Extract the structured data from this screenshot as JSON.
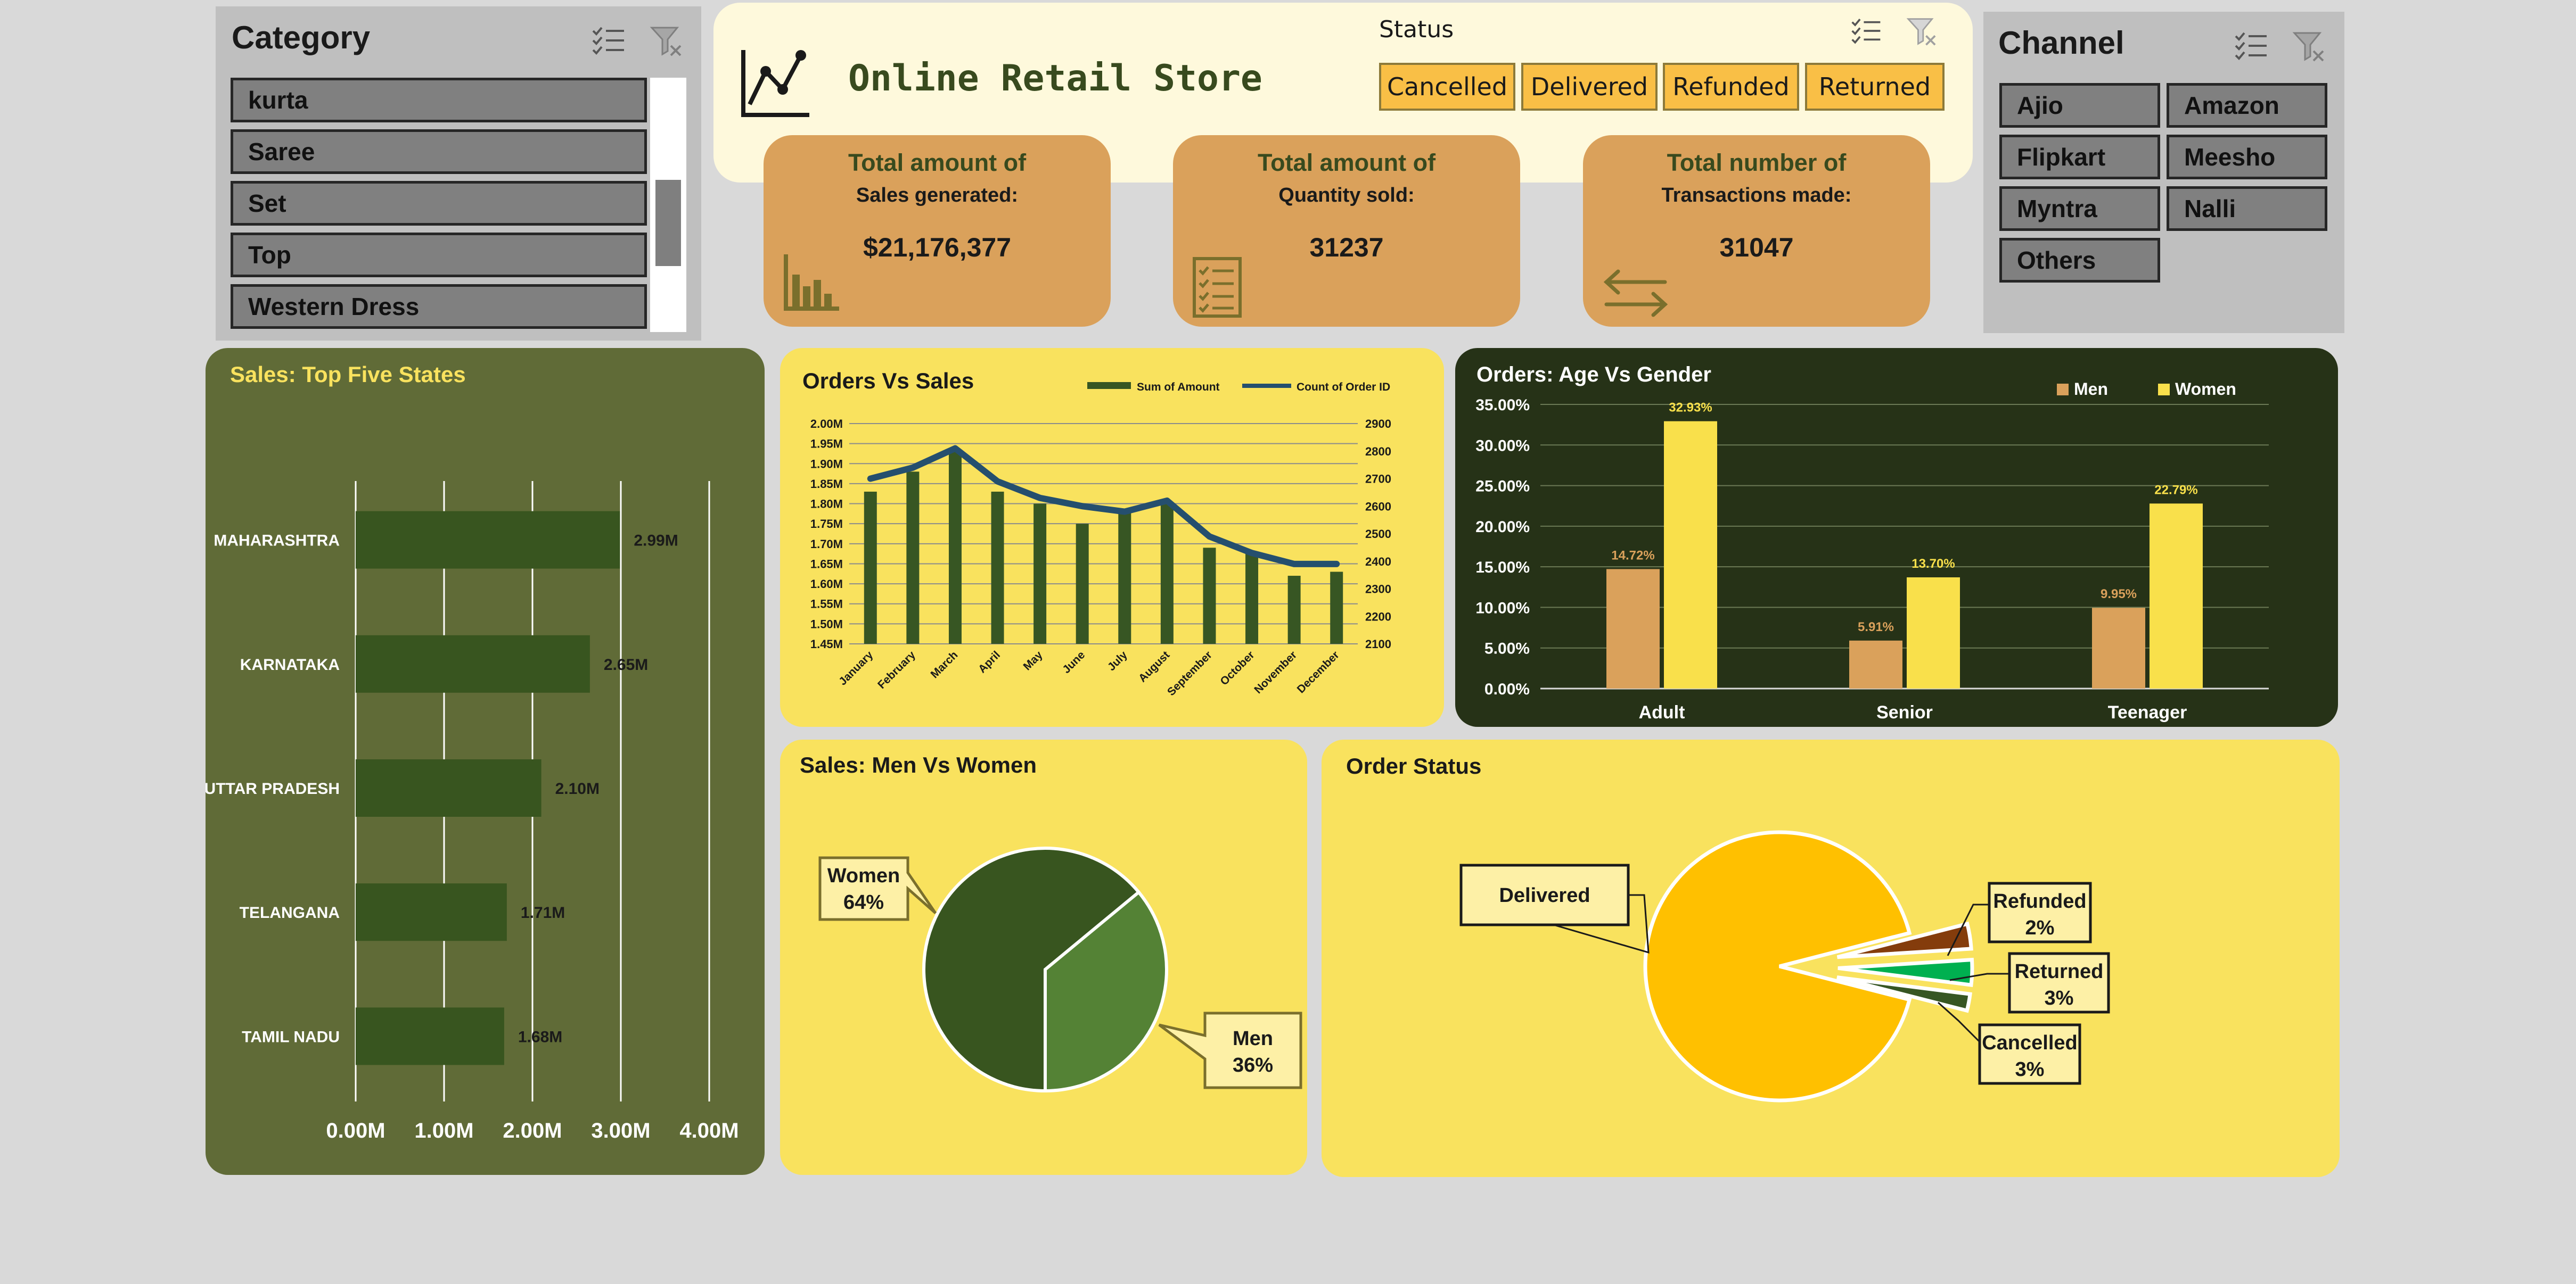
{
  "colors": {
    "background": "#d9d9d9",
    "slicer_bg": "#bfbfbf",
    "slicer_button": "#808080",
    "status_button": "#f9bf46",
    "header_bg": "#fef9dc",
    "kpi_bg": "#daa15b",
    "olive_panel": "#606b37",
    "dark_panel": "#263217",
    "yellow_panel": "#f9e25e",
    "dark_green": "#38551f",
    "mid_green": "#548235",
    "navy_line": "#254f6e",
    "tan": "#daa15b",
    "women_yellow": "#f9e04b",
    "delivered": "#ffc000",
    "returned": "#00b050",
    "cancelled": "#843c0c",
    "refunded": "#375623"
  },
  "category_slicer": {
    "title": "Category",
    "items": [
      "kurta",
      "Saree",
      "Set",
      "Top",
      "Western Dress"
    ],
    "icons": [
      "multi-select-icon",
      "clear-filter-icon"
    ]
  },
  "header": {
    "title": "Online Retail Store",
    "icon": "line-chart-icon"
  },
  "status_slicer": {
    "title": "Status",
    "items": [
      "Cancelled",
      "Delivered",
      "Refunded",
      "Returned"
    ],
    "icons": [
      "multi-select-icon",
      "clear-filter-icon"
    ]
  },
  "channel_slicer": {
    "title": "Channel",
    "items": [
      "Ajio",
      "Amazon",
      "Flipkart",
      "Meesho",
      "Myntra",
      "Nalli",
      "Others"
    ],
    "icons": [
      "multi-select-icon",
      "clear-filter-icon"
    ]
  },
  "kpis": [
    {
      "line1": "Total amount of",
      "line2": "Sales generated:",
      "value": "$21,176,377",
      "icon": "bar-chart-icon"
    },
    {
      "line1": "Total amount of",
      "line2": "Quantity sold:",
      "value": "31237",
      "icon": "checklist-icon"
    },
    {
      "line1": "Total number  of",
      "line2": "Transactions made:",
      "value": "31047",
      "icon": "transfer-arrows-icon"
    }
  ],
  "chart_data": [
    {
      "type": "bar",
      "orientation": "horizontal",
      "title": "Sales: Top Five States",
      "categories": [
        "MAHARASHTRA",
        "KARNATAKA",
        "UTTAR PRADESH",
        "TELANGANA",
        "TAMIL NADU"
      ],
      "values": [
        2.99,
        2.65,
        2.1,
        1.71,
        1.68
      ],
      "data_labels": [
        "2.99M",
        "2.65M",
        "2.10M",
        "1.71M",
        "1.68M"
      ],
      "xlim": [
        0,
        4
      ],
      "xticks": [
        "0.00M",
        "1.00M",
        "2.00M",
        "3.00M",
        "4.00M"
      ],
      "grid": true
    },
    {
      "type": "bar+line",
      "title": "Orders Vs Sales",
      "categories": [
        "January",
        "February",
        "March",
        "April",
        "May",
        "June",
        "July",
        "August",
        "September",
        "October",
        "November",
        "December"
      ],
      "series": [
        {
          "name": "Sum of Amount",
          "type": "bar",
          "axis": "left",
          "values": [
            1.83,
            1.88,
            1.93,
            1.83,
            1.8,
            1.75,
            1.78,
            1.8,
            1.69,
            1.68,
            1.62,
            1.63
          ]
        },
        {
          "name": "Count of Order ID",
          "type": "line",
          "axis": "right",
          "values": [
            2700,
            2740,
            2810,
            2690,
            2630,
            2600,
            2580,
            2620,
            2490,
            2430,
            2390,
            2390
          ]
        }
      ],
      "ylim_left": [
        1.45,
        2.0
      ],
      "yticks_left": [
        "1.45M",
        "1.50M",
        "1.55M",
        "1.60M",
        "1.65M",
        "1.70M",
        "1.75M",
        "1.80M",
        "1.85M",
        "1.90M",
        "1.95M",
        "2.00M"
      ],
      "ylim_right": [
        2100,
        2900
      ],
      "yticks_right": [
        "2100",
        "2200",
        "2300",
        "2400",
        "2500",
        "2600",
        "2700",
        "2800",
        "2900"
      ],
      "legend": "top",
      "grid": true
    },
    {
      "type": "bar",
      "title": "Orders: Age Vs Gender",
      "categories": [
        "Adult",
        "Senior",
        "Teenager"
      ],
      "series": [
        {
          "name": "Men",
          "values": [
            14.72,
            5.91,
            9.95
          ],
          "labels": [
            "14.72%",
            "5.91%",
            "9.95%"
          ]
        },
        {
          "name": "Women",
          "values": [
            32.93,
            13.7,
            22.79
          ],
          "labels": [
            "32.93%",
            "13.70%",
            "22.79%"
          ]
        }
      ],
      "ylim": [
        0,
        35
      ],
      "yticks": [
        "0.00%",
        "5.00%",
        "10.00%",
        "15.00%",
        "20.00%",
        "25.00%",
        "30.00%",
        "35.00%"
      ],
      "legend": "top-right",
      "grid": true
    },
    {
      "type": "pie",
      "title": "Sales: Men Vs Women",
      "slices": [
        {
          "label": "Women",
          "value": 64,
          "text": "64%"
        },
        {
          "label": "Men",
          "value": 36,
          "text": "36%"
        }
      ]
    },
    {
      "type": "pie",
      "title": "Order Status",
      "slices": [
        {
          "label": "Delivered",
          "value": 92,
          "text": ""
        },
        {
          "label": "Refunded",
          "value": 2,
          "text": "2%"
        },
        {
          "label": "Returned",
          "value": 3,
          "text": "3%"
        },
        {
          "label": "Cancelled",
          "value": 3,
          "text": "3%"
        }
      ]
    }
  ]
}
